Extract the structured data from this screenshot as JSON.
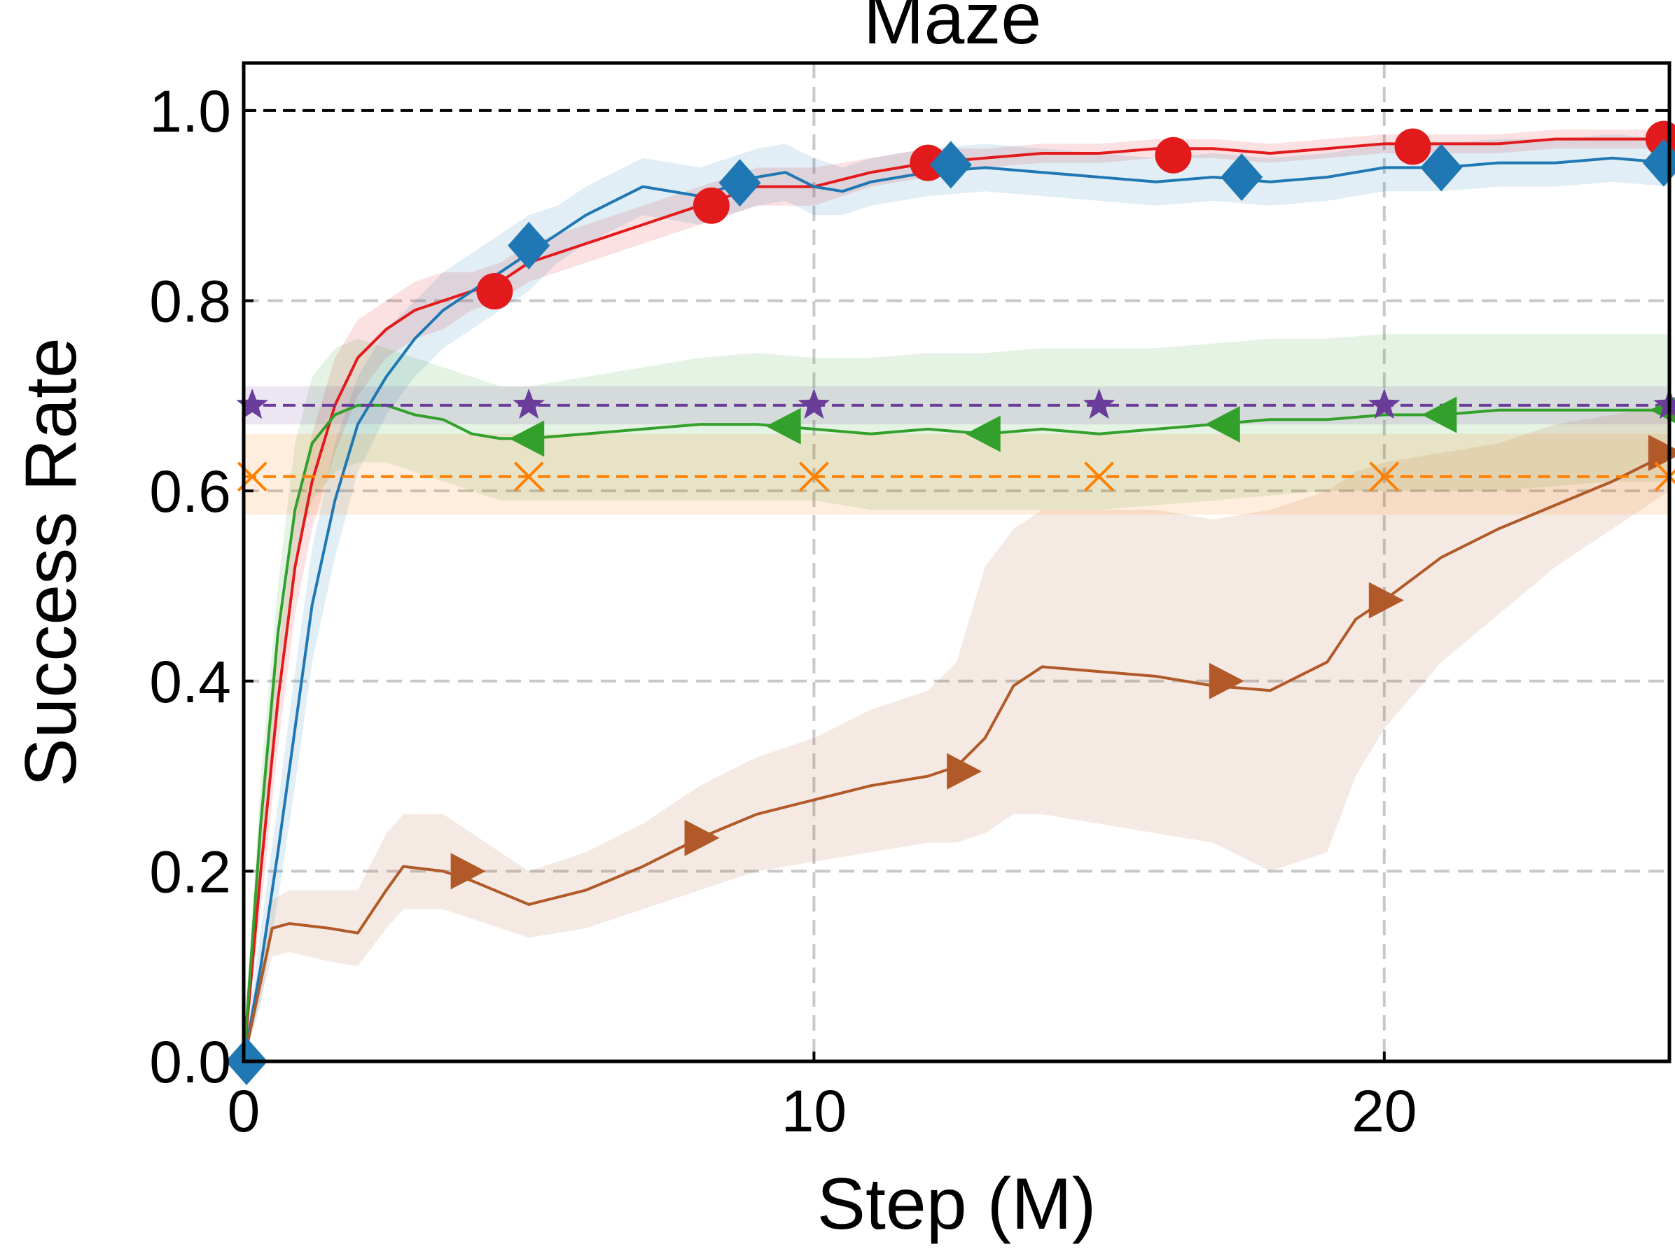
{
  "chart_data": {
    "type": "line",
    "title": "Maze",
    "xlabel": "Step (M)",
    "ylabel": "Success Rate",
    "xlim": [
      0,
      25
    ],
    "ylim": [
      0,
      1.05
    ],
    "xticks": [
      0,
      10,
      20
    ],
    "xtick_labels": [
      "0",
      "10",
      "20"
    ],
    "yticks": [
      0.0,
      0.2,
      0.4,
      0.6,
      0.8,
      1.0
    ],
    "ytick_labels": [
      "0.0",
      "0.2",
      "0.4",
      "0.6",
      "0.8",
      "1.0"
    ],
    "grid": true,
    "reference_lines": [
      {
        "y": 1.0,
        "color": "#000000",
        "style": "dashed"
      }
    ],
    "series": [
      {
        "id": "red",
        "color": "#e31a1c",
        "marker": "circle",
        "style": "solid",
        "x": [
          0,
          0.3,
          0.6,
          0.9,
          1.2,
          1.6,
          2.0,
          2.5,
          3.0,
          3.5,
          4.0,
          4.5,
          5.0,
          6.0,
          7.0,
          8.0,
          9.0,
          10.0,
          11.0,
          12.0,
          13.0,
          14.0,
          15.0,
          16.0,
          17.0,
          18.0,
          19.0,
          20.0,
          21.0,
          22.0,
          23.0,
          24.0,
          25.0
        ],
        "y": [
          0.0,
          0.2,
          0.38,
          0.52,
          0.61,
          0.69,
          0.74,
          0.77,
          0.79,
          0.8,
          0.81,
          0.82,
          0.84,
          0.86,
          0.88,
          0.9,
          0.92,
          0.92,
          0.935,
          0.945,
          0.95,
          0.955,
          0.955,
          0.96,
          0.96,
          0.955,
          0.96,
          0.965,
          0.965,
          0.965,
          0.97,
          0.97,
          0.97
        ],
        "lower": [
          0.0,
          0.16,
          0.33,
          0.47,
          0.56,
          0.64,
          0.7,
          0.74,
          0.76,
          0.77,
          0.79,
          0.8,
          0.82,
          0.84,
          0.86,
          0.88,
          0.9,
          0.9,
          0.92,
          0.93,
          0.94,
          0.945,
          0.945,
          0.95,
          0.95,
          0.945,
          0.95,
          0.955,
          0.955,
          0.955,
          0.96,
          0.96,
          0.96
        ],
        "upper": [
          0.0,
          0.24,
          0.43,
          0.57,
          0.66,
          0.74,
          0.78,
          0.8,
          0.82,
          0.83,
          0.83,
          0.84,
          0.86,
          0.88,
          0.9,
          0.92,
          0.94,
          0.94,
          0.95,
          0.96,
          0.96,
          0.965,
          0.965,
          0.97,
          0.97,
          0.965,
          0.97,
          0.975,
          0.975,
          0.975,
          0.98,
          0.98,
          0.98
        ],
        "markers_x": [
          4.4,
          8.2,
          12.0,
          16.3,
          20.5,
          24.9
        ],
        "markers_y": [
          0.81,
          0.9,
          0.945,
          0.953,
          0.962,
          0.97
        ]
      },
      {
        "id": "blue",
        "color": "#1f78b4",
        "marker": "diamond",
        "style": "solid",
        "x": [
          0,
          0.3,
          0.6,
          0.9,
          1.2,
          1.6,
          2.0,
          2.5,
          3.0,
          3.5,
          4.0,
          4.5,
          5.0,
          5.5,
          6.0,
          7.0,
          8.0,
          9.0,
          9.5,
          10.0,
          10.5,
          11.0,
          12.0,
          13.0,
          14.0,
          15.0,
          16.0,
          17.0,
          18.0,
          19.0,
          20.0,
          21.0,
          22.0,
          23.0,
          24.0,
          25.0
        ],
        "y": [
          0.0,
          0.1,
          0.22,
          0.35,
          0.48,
          0.59,
          0.67,
          0.72,
          0.76,
          0.79,
          0.81,
          0.83,
          0.85,
          0.87,
          0.89,
          0.92,
          0.91,
          0.93,
          0.935,
          0.92,
          0.915,
          0.925,
          0.935,
          0.94,
          0.935,
          0.93,
          0.925,
          0.93,
          0.925,
          0.93,
          0.94,
          0.94,
          0.945,
          0.945,
          0.95,
          0.945
        ],
        "lower": [
          0.0,
          0.06,
          0.17,
          0.29,
          0.42,
          0.53,
          0.62,
          0.68,
          0.72,
          0.75,
          0.77,
          0.79,
          0.81,
          0.84,
          0.86,
          0.89,
          0.88,
          0.9,
          0.905,
          0.89,
          0.89,
          0.9,
          0.91,
          0.915,
          0.91,
          0.905,
          0.9,
          0.905,
          0.9,
          0.905,
          0.915,
          0.915,
          0.92,
          0.92,
          0.925,
          0.92
        ],
        "upper": [
          0.0,
          0.14,
          0.27,
          0.41,
          0.54,
          0.65,
          0.72,
          0.77,
          0.8,
          0.83,
          0.85,
          0.87,
          0.89,
          0.9,
          0.92,
          0.95,
          0.94,
          0.96,
          0.965,
          0.95,
          0.94,
          0.95,
          0.96,
          0.965,
          0.96,
          0.955,
          0.95,
          0.955,
          0.95,
          0.955,
          0.965,
          0.965,
          0.97,
          0.97,
          0.975,
          0.97
        ],
        "markers_x": [
          0.05,
          5.0,
          8.7,
          12.4,
          17.5,
          21.0,
          24.9
        ],
        "markers_y": [
          0.0,
          0.858,
          0.924,
          0.943,
          0.93,
          0.94,
          0.945
        ]
      },
      {
        "id": "green",
        "color": "#33a02c",
        "marker": "triangle-left",
        "style": "solid",
        "x": [
          0,
          0.3,
          0.6,
          0.9,
          1.2,
          1.6,
          2.0,
          2.5,
          3.0,
          3.5,
          4.0,
          4.5,
          5.0,
          6.0,
          7.0,
          8.0,
          9.0,
          10.0,
          11.0,
          12.0,
          13.0,
          14.0,
          15.0,
          16.0,
          17.0,
          18.0,
          19.0,
          20.0,
          21.0,
          22.0,
          23.0,
          24.0,
          25.0
        ],
        "y": [
          0.0,
          0.25,
          0.45,
          0.58,
          0.65,
          0.68,
          0.69,
          0.69,
          0.68,
          0.675,
          0.66,
          0.655,
          0.655,
          0.66,
          0.665,
          0.67,
          0.67,
          0.665,
          0.66,
          0.665,
          0.66,
          0.665,
          0.66,
          0.665,
          0.67,
          0.675,
          0.675,
          0.68,
          0.68,
          0.685,
          0.685,
          0.685,
          0.685
        ],
        "lower": [
          0.0,
          0.21,
          0.4,
          0.53,
          0.59,
          0.62,
          0.63,
          0.63,
          0.62,
          0.61,
          0.6,
          0.59,
          0.59,
          0.59,
          0.59,
          0.59,
          0.59,
          0.59,
          0.58,
          0.58,
          0.58,
          0.58,
          0.58,
          0.585,
          0.59,
          0.595,
          0.6,
          0.6,
          0.6,
          0.6,
          0.605,
          0.61,
          0.61
        ],
        "upper": [
          0.0,
          0.3,
          0.5,
          0.65,
          0.72,
          0.75,
          0.76,
          0.75,
          0.74,
          0.73,
          0.72,
          0.71,
          0.71,
          0.72,
          0.73,
          0.74,
          0.745,
          0.74,
          0.74,
          0.745,
          0.745,
          0.75,
          0.75,
          0.75,
          0.755,
          0.76,
          0.76,
          0.765,
          0.765,
          0.765,
          0.765,
          0.765,
          0.765
        ],
        "markers_x": [
          5.0,
          9.5,
          13.0,
          17.2,
          21.0,
          25.0
        ],
        "markers_y": [
          0.655,
          0.668,
          0.66,
          0.67,
          0.68,
          0.685
        ]
      },
      {
        "id": "brown",
        "color": "#b15928",
        "marker": "triangle-right",
        "style": "solid",
        "x": [
          0,
          0.5,
          0.8,
          1.5,
          2.0,
          2.5,
          2.8,
          3.5,
          4.0,
          5.0,
          6.0,
          7.0,
          8.0,
          9.0,
          10.0,
          11.0,
          12.0,
          12.5,
          13.0,
          13.5,
          14.0,
          15.0,
          16.0,
          17.0,
          18.0,
          19.0,
          19.5,
          20.0,
          21.0,
          22.0,
          23.0,
          24.0,
          25.0
        ],
        "y": [
          0.0,
          0.14,
          0.145,
          0.14,
          0.135,
          0.18,
          0.205,
          0.2,
          0.19,
          0.165,
          0.18,
          0.205,
          0.235,
          0.26,
          0.275,
          0.29,
          0.3,
          0.31,
          0.34,
          0.395,
          0.415,
          0.41,
          0.405,
          0.395,
          0.39,
          0.42,
          0.465,
          0.485,
          0.53,
          0.56,
          0.585,
          0.61,
          0.64
        ],
        "lower": [
          0.0,
          0.11,
          0.115,
          0.105,
          0.1,
          0.14,
          0.16,
          0.16,
          0.15,
          0.13,
          0.14,
          0.16,
          0.18,
          0.2,
          0.21,
          0.22,
          0.23,
          0.23,
          0.24,
          0.26,
          0.26,
          0.25,
          0.24,
          0.23,
          0.2,
          0.22,
          0.3,
          0.35,
          0.42,
          0.47,
          0.52,
          0.56,
          0.6
        ],
        "upper": [
          0.0,
          0.17,
          0.18,
          0.18,
          0.18,
          0.24,
          0.26,
          0.26,
          0.24,
          0.2,
          0.22,
          0.25,
          0.29,
          0.32,
          0.34,
          0.37,
          0.39,
          0.42,
          0.52,
          0.56,
          0.58,
          0.58,
          0.58,
          0.57,
          0.58,
          0.6,
          0.62,
          0.63,
          0.64,
          0.65,
          0.67,
          0.68,
          0.69
        ],
        "markers_x": [
          3.9,
          8.0,
          12.6,
          17.2,
          20.0,
          24.9
        ],
        "markers_y": [
          0.2,
          0.235,
          0.305,
          0.4,
          0.485,
          0.64
        ]
      },
      {
        "id": "purple",
        "color": "#6a3d9a",
        "marker": "star",
        "style": "dashed",
        "x": [
          0,
          25
        ],
        "y": [
          0.69,
          0.69
        ],
        "lower": [
          0.67,
          0.67
        ],
        "upper": [
          0.71,
          0.71
        ],
        "markers_x": [
          0.15,
          5.0,
          10.0,
          15.0,
          20.0,
          25.0
        ],
        "markers_y": [
          0.69,
          0.69,
          0.69,
          0.69,
          0.69,
          0.69
        ]
      },
      {
        "id": "orange",
        "color": "#ff7f00",
        "marker": "x",
        "style": "dashed",
        "x": [
          0,
          25
        ],
        "y": [
          0.615,
          0.615
        ],
        "lower": [
          0.575,
          0.575
        ],
        "upper": [
          0.66,
          0.66
        ],
        "markers_x": [
          0.15,
          5.0,
          10.0,
          15.0,
          20.0,
          25.0
        ],
        "markers_y": [
          0.615,
          0.615,
          0.615,
          0.615,
          0.615,
          0.615
        ]
      }
    ]
  }
}
